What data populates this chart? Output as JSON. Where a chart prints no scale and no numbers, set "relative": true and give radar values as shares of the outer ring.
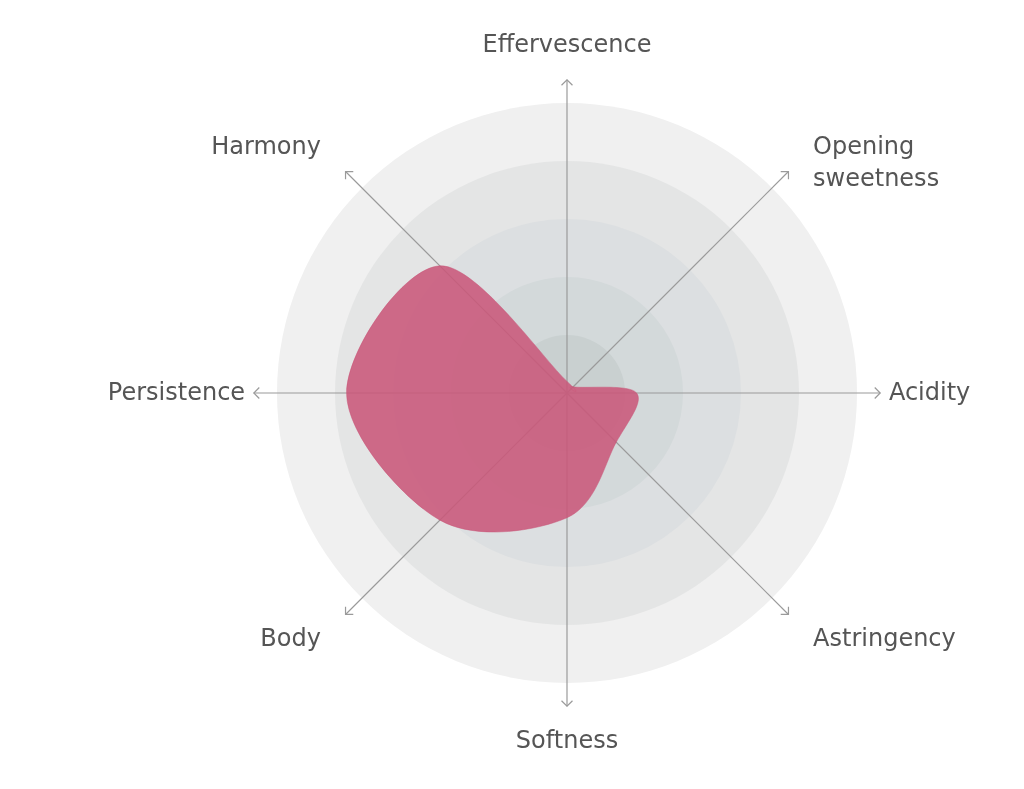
{
  "chart_data": {
    "type": "radar",
    "categories": [
      "Effervescence",
      "Opening sweetness",
      "Acidity",
      "Astringency",
      "Softness",
      "Body",
      "Persistence",
      "Harmony"
    ],
    "series": [
      {
        "color": "#c9587a",
        "values": [
          0.04,
          0.03,
          0.24,
          0.24,
          0.43,
          0.62,
          0.76,
          0.62
        ]
      }
    ],
    "relative": true,
    "grid": true
  }
}
